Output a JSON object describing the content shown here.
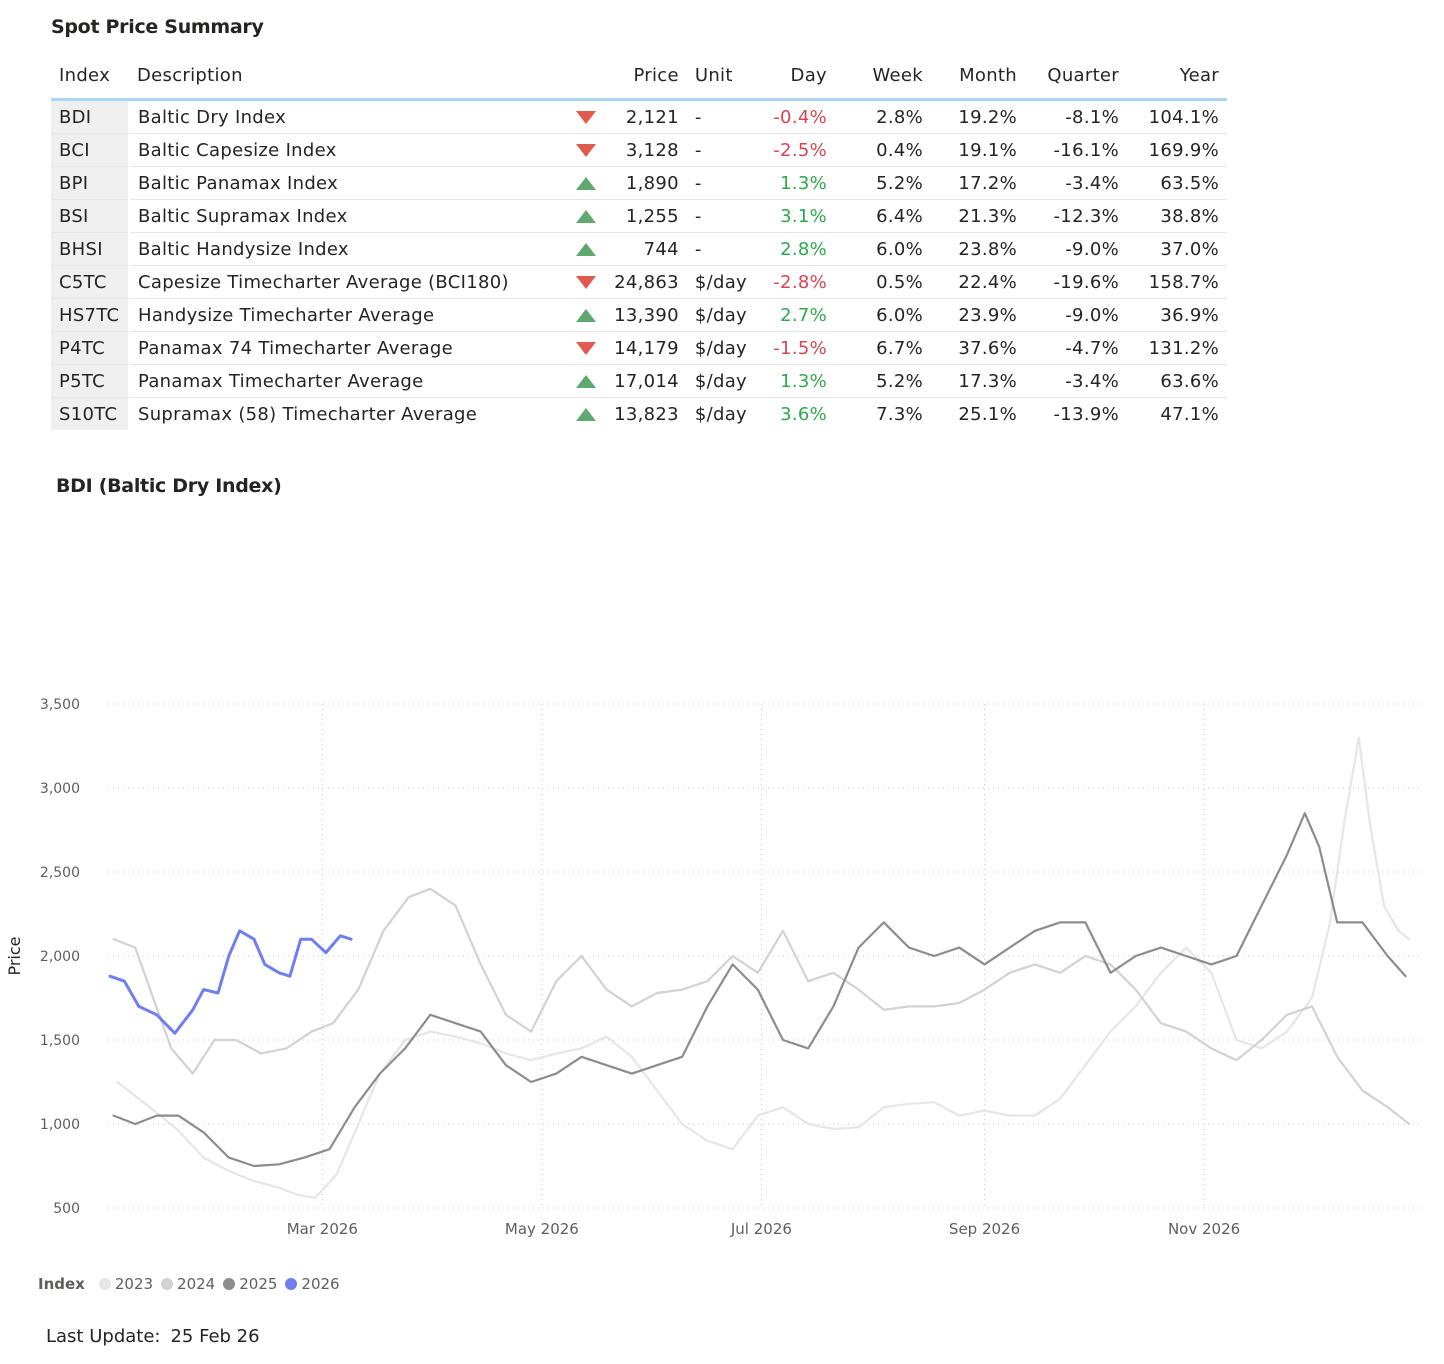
{
  "table": {
    "title": "Spot Price Summary",
    "columns": [
      "Index",
      "Description",
      "Price",
      "Unit",
      "Day",
      "Week",
      "Month",
      "Quarter",
      "Year"
    ],
    "rows": [
      {
        "index": "BDI",
        "description": "Baltic Dry Index",
        "trend": "down",
        "price": "2,121",
        "unit": "-",
        "day": "-0.4%",
        "week": "2.8%",
        "month": "19.2%",
        "quarter": "-8.1%",
        "year": "104.1%"
      },
      {
        "index": "BCI",
        "description": "Baltic Capesize Index",
        "trend": "down",
        "price": "3,128",
        "unit": "-",
        "day": "-2.5%",
        "week": "0.4%",
        "month": "19.1%",
        "quarter": "-16.1%",
        "year": "169.9%"
      },
      {
        "index": "BPI",
        "description": "Baltic Panamax Index",
        "trend": "up",
        "price": "1,890",
        "unit": "-",
        "day": "1.3%",
        "week": "5.2%",
        "month": "17.2%",
        "quarter": "-3.4%",
        "year": "63.5%"
      },
      {
        "index": "BSI",
        "description": "Baltic Supramax Index",
        "trend": "up",
        "price": "1,255",
        "unit": "-",
        "day": "3.1%",
        "week": "6.4%",
        "month": "21.3%",
        "quarter": "-12.3%",
        "year": "38.8%"
      },
      {
        "index": "BHSI",
        "description": "Baltic Handysize Index",
        "trend": "up",
        "price": "744",
        "unit": "-",
        "day": "2.8%",
        "week": "6.0%",
        "month": "23.8%",
        "quarter": "-9.0%",
        "year": "37.0%"
      },
      {
        "index": "C5TC",
        "description": "Capesize Timecharter Average (BCI180)",
        "trend": "down",
        "price": "24,863",
        "unit": "$/day",
        "day": "-2.8%",
        "week": "0.5%",
        "month": "22.4%",
        "quarter": "-19.6%",
        "year": "158.7%"
      },
      {
        "index": "HS7TC",
        "description": "Handysize Timecharter Average",
        "trend": "up",
        "price": "13,390",
        "unit": "$/day",
        "day": "2.7%",
        "week": "6.0%",
        "month": "23.9%",
        "quarter": "-9.0%",
        "year": "36.9%"
      },
      {
        "index": "P4TC",
        "description": "Panamax 74 Timecharter Average",
        "trend": "down",
        "price": "14,179",
        "unit": "$/day",
        "day": "-1.5%",
        "week": "6.7%",
        "month": "37.6%",
        "quarter": "-4.7%",
        "year": "131.2%"
      },
      {
        "index": "P5TC",
        "description": "Panamax Timecharter Average",
        "trend": "up",
        "price": "17,014",
        "unit": "$/day",
        "day": "1.3%",
        "week": "5.2%",
        "month": "17.3%",
        "quarter": "-3.4%",
        "year": "63.6%"
      },
      {
        "index": "S10TC",
        "description": "Supramax (58) Timecharter Average",
        "trend": "up",
        "price": "13,823",
        "unit": "$/day",
        "day": "3.6%",
        "week": "7.3%",
        "month": "25.1%",
        "quarter": "-13.9%",
        "year": "47.1%"
      }
    ]
  },
  "colors": {
    "negative": "#d64550",
    "positive": "#2ea84a",
    "header_rule": "#a9d4f2",
    "index_cell_bg": "#efefef",
    "triangle_down": "#e05a4f",
    "triangle_up": "#5fa86f"
  },
  "chart_data": {
    "type": "line",
    "title": "BDI (Baltic Dry Index)",
    "xlabel": "",
    "ylabel": "Price",
    "ylim": [
      500,
      3500
    ],
    "yticks": [
      500,
      1000,
      1500,
      2000,
      2500,
      3000,
      3500
    ],
    "ytick_labels": [
      "500",
      "1,000",
      "1,500",
      "2,000",
      "2,500",
      "3,000",
      "3,500"
    ],
    "xlim": [
      "2026-01-01",
      "2026-12-31"
    ],
    "xticks": [
      "2026-03-01",
      "2026-05-01",
      "2026-07-01",
      "2026-09-01",
      "2026-11-01"
    ],
    "xtick_labels": [
      "Mar 2026",
      "May 2026",
      "Jul 2026",
      "Sep 2026",
      "Nov 2026"
    ],
    "grid": true,
    "legend": {
      "title": "Index",
      "position": "bottom-left"
    },
    "series": [
      {
        "name": "2023",
        "color": "#e6e6e6",
        "points": [
          [
            "2026-01-03",
            1250
          ],
          [
            "2026-01-09",
            1150
          ],
          [
            "2026-01-15",
            1050
          ],
          [
            "2026-01-20",
            960
          ],
          [
            "2026-01-27",
            800
          ],
          [
            "2026-02-03",
            720
          ],
          [
            "2026-02-10",
            660
          ],
          [
            "2026-02-17",
            620
          ],
          [
            "2026-02-22",
            580
          ],
          [
            "2026-02-27",
            560
          ],
          [
            "2026-03-05",
            700
          ],
          [
            "2026-03-10",
            950
          ],
          [
            "2026-03-17",
            1300
          ],
          [
            "2026-03-24",
            1500
          ],
          [
            "2026-03-31",
            1550
          ],
          [
            "2026-04-07",
            1520
          ],
          [
            "2026-04-14",
            1480
          ],
          [
            "2026-04-21",
            1420
          ],
          [
            "2026-04-28",
            1380
          ],
          [
            "2026-05-05",
            1420
          ],
          [
            "2026-05-12",
            1450
          ],
          [
            "2026-05-19",
            1520
          ],
          [
            "2026-05-26",
            1400
          ],
          [
            "2026-06-02",
            1200
          ],
          [
            "2026-06-09",
            1000
          ],
          [
            "2026-06-16",
            900
          ],
          [
            "2026-06-23",
            850
          ],
          [
            "2026-06-30",
            1050
          ],
          [
            "2026-07-07",
            1100
          ],
          [
            "2026-07-14",
            1000
          ],
          [
            "2026-07-21",
            970
          ],
          [
            "2026-07-28",
            980
          ],
          [
            "2026-08-04",
            1100
          ],
          [
            "2026-08-11",
            1120
          ],
          [
            "2026-08-18",
            1130
          ],
          [
            "2026-08-25",
            1050
          ],
          [
            "2026-09-01",
            1080
          ],
          [
            "2026-09-08",
            1050
          ],
          [
            "2026-09-15",
            1050
          ],
          [
            "2026-09-22",
            1150
          ],
          [
            "2026-09-29",
            1350
          ],
          [
            "2026-10-06",
            1550
          ],
          [
            "2026-10-13",
            1700
          ],
          [
            "2026-10-20",
            1900
          ],
          [
            "2026-10-27",
            2050
          ],
          [
            "2026-11-03",
            1900
          ],
          [
            "2026-11-10",
            1500
          ],
          [
            "2026-11-17",
            1450
          ],
          [
            "2026-11-24",
            1550
          ],
          [
            "2026-12-01",
            1750
          ],
          [
            "2026-12-06",
            2200
          ],
          [
            "2026-12-10",
            2800
          ],
          [
            "2026-12-14",
            3300
          ],
          [
            "2026-12-17",
            2800
          ],
          [
            "2026-12-21",
            2300
          ],
          [
            "2026-12-25",
            2150
          ],
          [
            "2026-12-28",
            2100
          ]
        ]
      },
      {
        "name": "2024",
        "color": "#d2d2d2",
        "points": [
          [
            "2026-01-02",
            2100
          ],
          [
            "2026-01-08",
            2050
          ],
          [
            "2026-01-13",
            1750
          ],
          [
            "2026-01-18",
            1450
          ],
          [
            "2026-01-24",
            1300
          ],
          [
            "2026-01-30",
            1500
          ],
          [
            "2026-02-05",
            1500
          ],
          [
            "2026-02-12",
            1420
          ],
          [
            "2026-02-19",
            1450
          ],
          [
            "2026-02-26",
            1550
          ],
          [
            "2026-03-04",
            1600
          ],
          [
            "2026-03-11",
            1800
          ],
          [
            "2026-03-18",
            2150
          ],
          [
            "2026-03-25",
            2350
          ],
          [
            "2026-03-31",
            2400
          ],
          [
            "2026-04-07",
            2300
          ],
          [
            "2026-04-14",
            1950
          ],
          [
            "2026-04-21",
            1650
          ],
          [
            "2026-04-28",
            1550
          ],
          [
            "2026-05-05",
            1850
          ],
          [
            "2026-05-12",
            2000
          ],
          [
            "2026-05-19",
            1800
          ],
          [
            "2026-05-26",
            1700
          ],
          [
            "2026-06-02",
            1780
          ],
          [
            "2026-06-09",
            1800
          ],
          [
            "2026-06-16",
            1850
          ],
          [
            "2026-06-23",
            2000
          ],
          [
            "2026-06-30",
            1900
          ],
          [
            "2026-07-07",
            2150
          ],
          [
            "2026-07-14",
            1850
          ],
          [
            "2026-07-21",
            1900
          ],
          [
            "2026-07-28",
            1800
          ],
          [
            "2026-08-04",
            1680
          ],
          [
            "2026-08-11",
            1700
          ],
          [
            "2026-08-18",
            1700
          ],
          [
            "2026-08-25",
            1720
          ],
          [
            "2026-09-01",
            1800
          ],
          [
            "2026-09-08",
            1900
          ],
          [
            "2026-09-15",
            1950
          ],
          [
            "2026-09-22",
            1900
          ],
          [
            "2026-09-29",
            2000
          ],
          [
            "2026-10-06",
            1950
          ],
          [
            "2026-10-13",
            1800
          ],
          [
            "2026-10-20",
            1600
          ],
          [
            "2026-10-27",
            1550
          ],
          [
            "2026-11-03",
            1450
          ],
          [
            "2026-11-10",
            1380
          ],
          [
            "2026-11-17",
            1500
          ],
          [
            "2026-11-24",
            1650
          ],
          [
            "2026-12-01",
            1700
          ],
          [
            "2026-12-08",
            1400
          ],
          [
            "2026-12-15",
            1200
          ],
          [
            "2026-12-22",
            1100
          ],
          [
            "2026-12-28",
            1000
          ]
        ]
      },
      {
        "name": "2025",
        "color": "#8c8c8c",
        "points": [
          [
            "2026-01-02",
            1050
          ],
          [
            "2026-01-08",
            1000
          ],
          [
            "2026-01-14",
            1050
          ],
          [
            "2026-01-20",
            1050
          ],
          [
            "2026-01-27",
            950
          ],
          [
            "2026-02-03",
            800
          ],
          [
            "2026-02-10",
            750
          ],
          [
            "2026-02-17",
            760
          ],
          [
            "2026-02-24",
            800
          ],
          [
            "2026-03-03",
            850
          ],
          [
            "2026-03-10",
            1100
          ],
          [
            "2026-03-17",
            1300
          ],
          [
            "2026-03-24",
            1450
          ],
          [
            "2026-03-31",
            1650
          ],
          [
            "2026-04-07",
            1600
          ],
          [
            "2026-04-14",
            1550
          ],
          [
            "2026-04-21",
            1350
          ],
          [
            "2026-04-28",
            1250
          ],
          [
            "2026-05-05",
            1300
          ],
          [
            "2026-05-12",
            1400
          ],
          [
            "2026-05-19",
            1350
          ],
          [
            "2026-05-26",
            1300
          ],
          [
            "2026-06-02",
            1350
          ],
          [
            "2026-06-09",
            1400
          ],
          [
            "2026-06-16",
            1700
          ],
          [
            "2026-06-23",
            1950
          ],
          [
            "2026-06-30",
            1800
          ],
          [
            "2026-07-07",
            1500
          ],
          [
            "2026-07-14",
            1450
          ],
          [
            "2026-07-21",
            1700
          ],
          [
            "2026-07-28",
            2050
          ],
          [
            "2026-08-04",
            2200
          ],
          [
            "2026-08-11",
            2050
          ],
          [
            "2026-08-18",
            2000
          ],
          [
            "2026-08-25",
            2050
          ],
          [
            "2026-09-01",
            1950
          ],
          [
            "2026-09-08",
            2050
          ],
          [
            "2026-09-15",
            2150
          ],
          [
            "2026-09-22",
            2200
          ],
          [
            "2026-09-29",
            2200
          ],
          [
            "2026-10-06",
            1900
          ],
          [
            "2026-10-13",
            2000
          ],
          [
            "2026-10-20",
            2050
          ],
          [
            "2026-10-27",
            2000
          ],
          [
            "2026-11-03",
            1950
          ],
          [
            "2026-11-10",
            2000
          ],
          [
            "2026-11-17",
            2300
          ],
          [
            "2026-11-24",
            2600
          ],
          [
            "2026-11-29",
            2850
          ],
          [
            "2026-12-03",
            2650
          ],
          [
            "2026-12-08",
            2200
          ],
          [
            "2026-12-15",
            2200
          ],
          [
            "2026-12-22",
            2000
          ],
          [
            "2026-12-27",
            1880
          ]
        ]
      },
      {
        "name": "2026",
        "color": "#6f7ff0",
        "points": [
          [
            "2026-01-01",
            1880
          ],
          [
            "2026-01-05",
            1850
          ],
          [
            "2026-01-09",
            1700
          ],
          [
            "2026-01-14",
            1650
          ],
          [
            "2026-01-19",
            1540
          ],
          [
            "2026-01-24",
            1680
          ],
          [
            "2026-01-27",
            1800
          ],
          [
            "2026-01-31",
            1780
          ],
          [
            "2026-02-03",
            2000
          ],
          [
            "2026-02-06",
            2150
          ],
          [
            "2026-02-10",
            2100
          ],
          [
            "2026-02-13",
            1950
          ],
          [
            "2026-02-17",
            1900
          ],
          [
            "2026-02-20",
            1880
          ],
          [
            "2026-02-23",
            2100
          ],
          [
            "2026-02-26",
            2100
          ],
          [
            "2026-03-02",
            2020
          ],
          [
            "2026-03-06",
            2120
          ],
          [
            "2026-03-09",
            2100
          ]
        ]
      }
    ]
  },
  "footer": {
    "last_update_label": "Last Update:",
    "last_update_value": "25 Feb 26"
  }
}
